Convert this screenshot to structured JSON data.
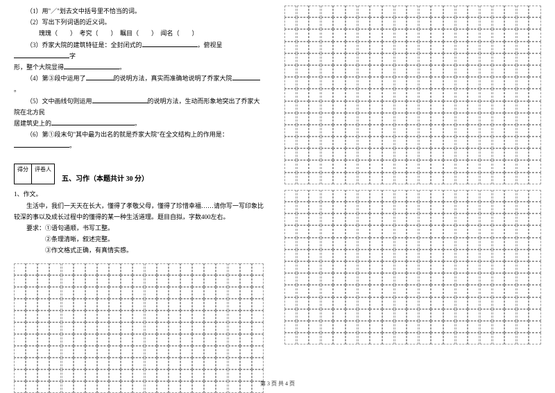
{
  "questions": {
    "q1": "（1）用\"／\"划去文中括号里不恰当的词。",
    "q2": "（2）写出下列词语的近义词。",
    "q2_words": "瑰瑰（　　）　考究（　　）　瞩目（　　）　闻名（　　）",
    "q3_a": "（3）乔家大院的建筑特征是：全封闭式的",
    "q3_b": "，俯视呈",
    "q3_c": "字",
    "q3_d": "形，整个大院显得",
    "q3_e": "。",
    "q4_a": "（4）第③段中运用了",
    "q4_b": "的说明方法，真实而准确地说明了乔家大院",
    "q4_c": "。",
    "q5_a": "（5）文中画线句则运用",
    "q5_b": "的说明方法，生动而形象地突出了乔家大院在北方民",
    "q5_c": "居建筑史上的",
    "q5_d": "。",
    "q6_a": "（6）第①段末句\"其中最为出名的就是乔家大院\"在全文结构上的作用是：",
    "q6_b": "。"
  },
  "score": {
    "col1": "得分",
    "col2": "评卷人"
  },
  "section5": {
    "title": "五、习作（本题共计 30 分）",
    "item": "1、作文。",
    "prompt1": "生活中，我们一天天在长大，懂得了孝敬父母，懂得了珍惜幸福……请你写一写印象比",
    "prompt2": "较深的事以及成长过程中的懂得的某一种生活道理。题目自拟，字数400左右。",
    "req_label": "要求：①语句通顺，书写工整。",
    "req2": "②条理清晰，叙述完整。",
    "req3": "③作文格式正确，有真情实感。"
  },
  "footer": "第 3 页 共 4 页",
  "grid": {
    "left_cols": 21,
    "left_rows": 11,
    "right_top_cols": 21,
    "right_top_rows": 15,
    "right_bottom_cols": 21,
    "right_bottom_rows": 13,
    "border_color": "#999999"
  }
}
